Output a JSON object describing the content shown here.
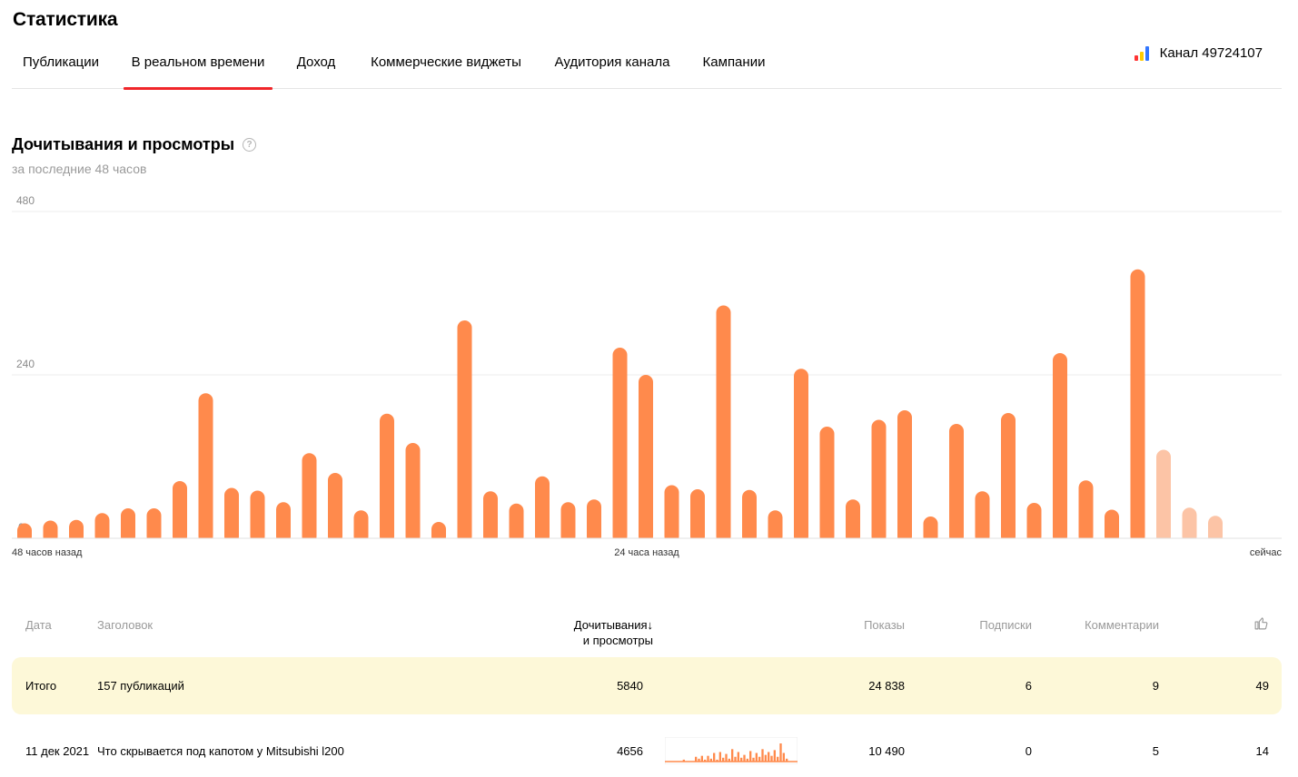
{
  "header": {
    "title": "Статистика"
  },
  "tabs": [
    {
      "label": "Публикации",
      "active": false
    },
    {
      "label": "В реальном времени",
      "active": true
    },
    {
      "label": "Доход",
      "active": false
    },
    {
      "label": "Коммерческие виджеты",
      "active": false
    },
    {
      "label": "Аудитория канала",
      "active": false
    },
    {
      "label": "Кампании",
      "active": false
    }
  ],
  "channel": {
    "label": "Канал 49724107",
    "icon": "bar-chart-logo-icon",
    "colors": [
      "#ff3333",
      "#ffcc00",
      "#3377ff"
    ]
  },
  "section": {
    "title": "Дочитывания и просмотры",
    "subtitle": "за последние 48 часов",
    "help_icon": "question-circle-icon"
  },
  "chart_data": {
    "type": "bar",
    "title": "Дочитывания и просмотры",
    "y_ticks": [
      "0",
      "240",
      "480"
    ],
    "ylim": [
      0,
      480
    ],
    "x_labels": [
      "48 часов назад",
      "24 часа назад",
      "сейчас"
    ],
    "grid": true,
    "bar_color": "#ff8a4c",
    "bar_color_partial": "#fcc4a6",
    "series": [
      {
        "values": [
          22,
          26,
          27,
          37,
          44,
          44,
          84,
          213,
          74,
          70,
          53,
          125,
          96,
          41,
          183,
          140,
          24,
          320,
          69,
          51,
          91,
          53,
          57,
          280,
          240,
          78,
          72,
          342,
          71,
          41,
          249,
          164,
          57,
          174,
          188,
          32,
          168,
          69,
          184,
          52,
          272,
          85,
          42,
          395,
          130,
          45,
          33
        ],
        "partial_from_index": 44
      }
    ]
  },
  "table": {
    "headers": {
      "date": "Дата",
      "title": "Заголовок",
      "reads_line1": "Дочитывания",
      "reads_line2": "и просмотры",
      "sort_icon": "arrow-down-icon",
      "views": "Показы",
      "subs": "Подписки",
      "comments": "Комментарии",
      "likes_icon": "thumbs-up-icon"
    },
    "total": {
      "date": "Итого",
      "title": "157 публикаций",
      "reads": "5840",
      "views": "24 838",
      "subs": "6",
      "comments": "9",
      "likes": "49"
    },
    "rows": [
      {
        "date": "11 дек 2021",
        "title": "Что скрывается под капотом у Mitsubishi l200",
        "reads": "4656",
        "spark_values": [
          0,
          0,
          0,
          0,
          0,
          2,
          0,
          0,
          0,
          5,
          3,
          6,
          2,
          6,
          3,
          9,
          2,
          10,
          4,
          8,
          3,
          13,
          5,
          10,
          4,
          7,
          3,
          11,
          4,
          9,
          5,
          13,
          7,
          10,
          6,
          12,
          5,
          19,
          9,
          3,
          0,
          0
        ],
        "views": "10 490",
        "subs": "0",
        "comments": "5",
        "likes": "14"
      }
    ]
  }
}
